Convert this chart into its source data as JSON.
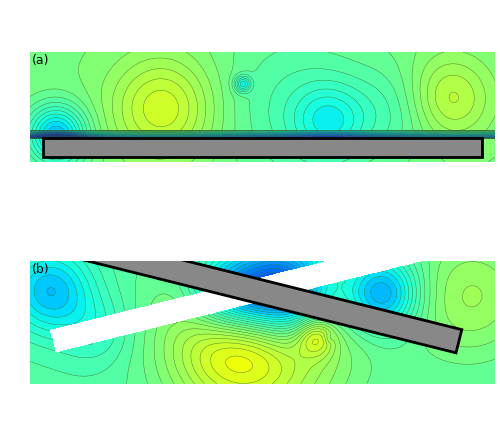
{
  "fig_width": 5.0,
  "fig_height": 4.31,
  "dpi": 100,
  "label_a": "(a)",
  "label_b": "(b)",
  "vmin": 0.0,
  "vmax": 1.6,
  "n_contour_levels": 40,
  "background_color": "#ffffff",
  "panel_a": {
    "deck_color": "#888888",
    "deck_outline": "#000000"
  },
  "panel_b": {
    "deck_color": "#888888",
    "deck_outline": "#000000"
  }
}
